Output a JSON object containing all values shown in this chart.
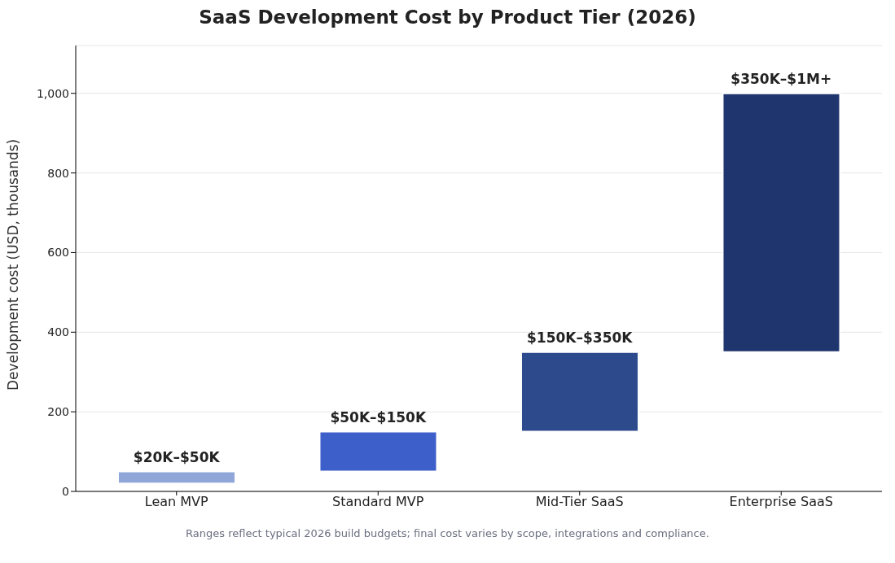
{
  "chart_data": {
    "type": "bar",
    "title": "SaaS Development Cost by Product Tier (2026)",
    "ylabel": "Development cost (USD, thousands)",
    "categories": [
      "Lean MVP",
      "Standard MVP",
      "Mid-Tier SaaS",
      "Enterprise SaaS"
    ],
    "base": [
      20,
      50,
      150,
      350
    ],
    "values": [
      30,
      100,
      200,
      650
    ],
    "colors": [
      "#8fa6d8",
      "#3d5fca",
      "#2d4b8c",
      "#1f356d"
    ],
    "ylim": [
      0,
      1120
    ],
    "yticks": [
      0,
      200,
      400,
      600,
      800,
      {
        "value": 1000,
        "label": "1,000"
      }
    ],
    "grid": "y",
    "legend": false,
    "annotations": [
      {
        "text": "$20K–$50K",
        "x": "Lean MVP",
        "y": 50
      },
      {
        "text": "$50K–$150K",
        "x": "Standard MVP",
        "y": 150
      },
      {
        "text": "$150K–$350K",
        "x": "Mid-Tier SaaS",
        "y": 350
      },
      {
        "text": "$350K–$1M+",
        "x": "Enterprise SaaS",
        "y": 1000
      },
      "Ranges reflect typical 2026 build budgets; final cost varies by scope, integrations and compliance."
    ]
  }
}
